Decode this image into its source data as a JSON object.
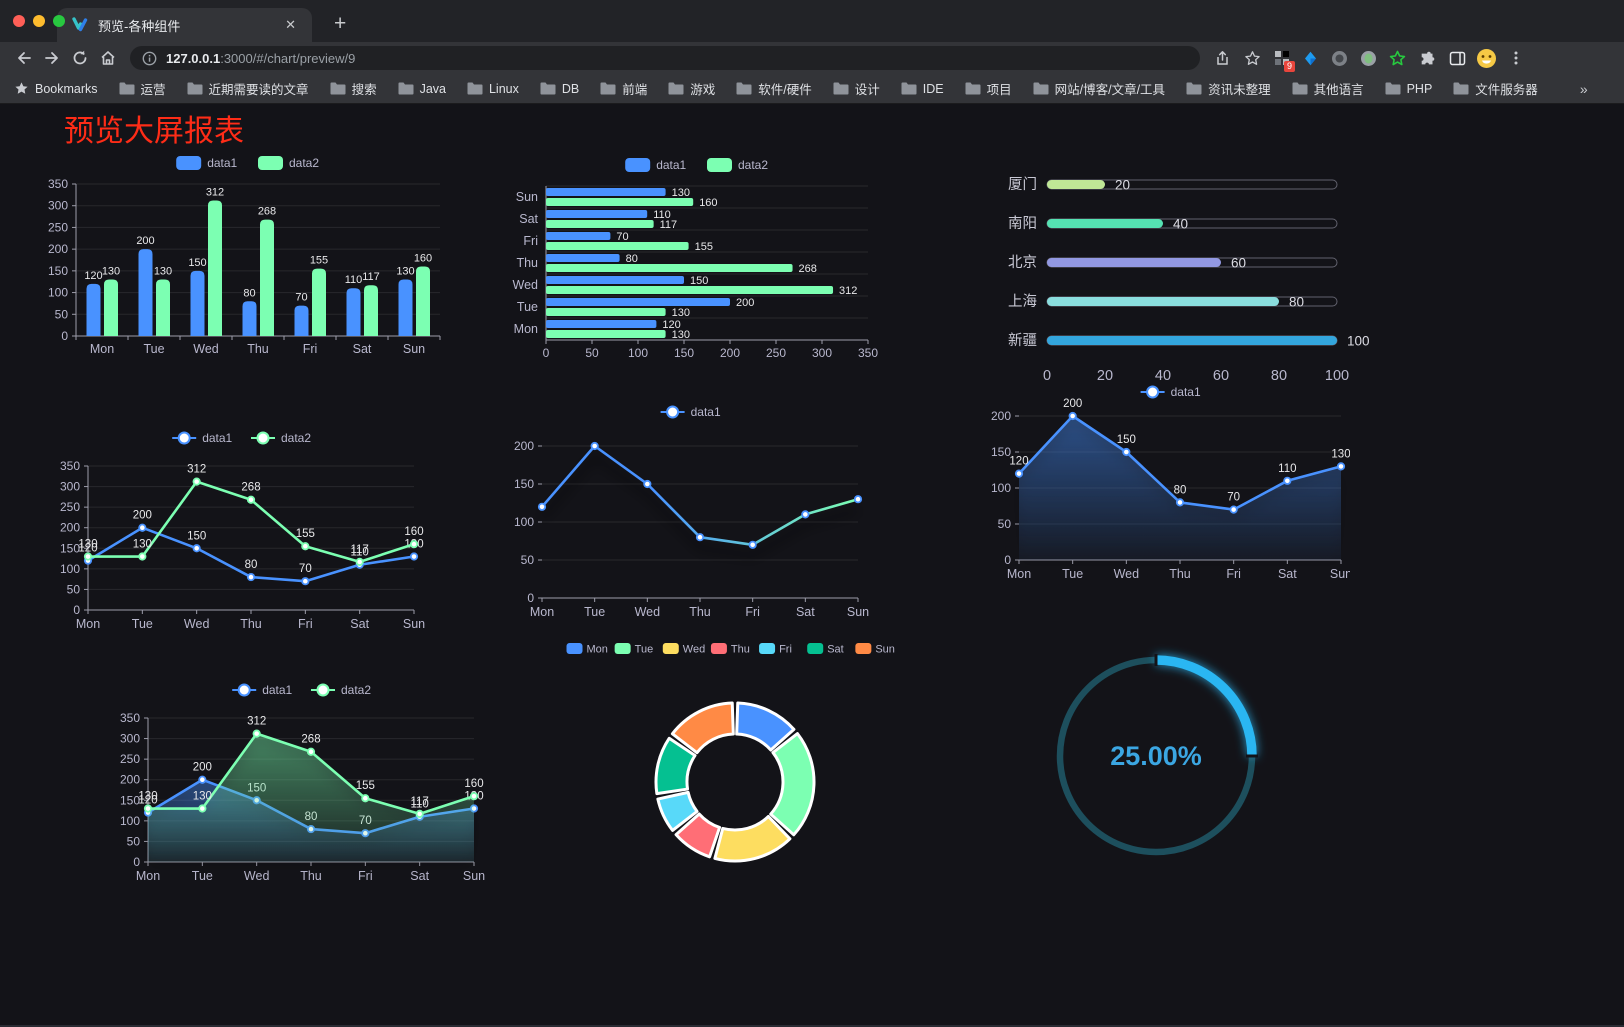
{
  "browser": {
    "tab": {
      "title": "预览-各种组件",
      "close": "✕"
    },
    "new_tab": "+",
    "url_host": "127.0.0.1",
    "url_rest": ":3000/#/chart/preview/9",
    "bookmarks_label": "Bookmarks",
    "bookmarks": [
      "运营",
      "近期需要读的文章",
      "搜索",
      "Java",
      "Linux",
      "DB",
      "前端",
      "游戏",
      "软件/硬件",
      "设计",
      "IDE",
      "项目",
      "网站/博客/文章/工具",
      "资讯未整理",
      "其他语言",
      "PHP",
      "文件服务器"
    ],
    "bookmarks_overflow": "»",
    "other_bookmarks": "其他书签",
    "extension_badge": "9"
  },
  "page": {
    "title": "预览大屏报表",
    "title_color": "#fe2c17"
  },
  "palette": {
    "blue": "#4992ff",
    "green": "#7cffb2",
    "yellow": "#fddd60",
    "red": "#ff6e76",
    "cyan": "#58d9f9",
    "teal": "#05c091",
    "orange": "#ff8a45",
    "axis_text": "#b9b8ce",
    "value_text": "#e8e8ea"
  },
  "chart_data": [
    {
      "id": "bar-grouped",
      "type": "bar",
      "title": "",
      "categories": [
        "Mon",
        "Tue",
        "Wed",
        "Thu",
        "Fri",
        "Sat",
        "Sun"
      ],
      "series": [
        {
          "name": "data1",
          "color": "#4992ff",
          "values": [
            120,
            200,
            150,
            80,
            70,
            110,
            130
          ]
        },
        {
          "name": "data2",
          "color": "#7cffb2",
          "values": [
            130,
            130,
            312,
            268,
            155,
            117,
            160
          ]
        }
      ],
      "ylim": [
        0,
        350
      ],
      "ytick": 50,
      "legend_position": "top",
      "grid": true,
      "value_labels": true
    },
    {
      "id": "bar-horizontal",
      "type": "bar-horizontal",
      "categories_top_to_bottom": [
        "Sun",
        "Sat",
        "Fri",
        "Thu",
        "Wed",
        "Tue",
        "Mon"
      ],
      "series": [
        {
          "name": "data1",
          "color": "#4992ff",
          "values_for_Mon_to_Sun": [
            120,
            200,
            150,
            80,
            70,
            110,
            130
          ]
        },
        {
          "name": "data2",
          "color": "#7cffb2",
          "values_for_Mon_to_Sun": [
            130,
            130,
            312,
            268,
            155,
            117,
            160
          ]
        }
      ],
      "xlim": [
        0,
        350
      ],
      "xtick": 50,
      "legend_position": "top",
      "grid": true,
      "value_labels": true
    },
    {
      "id": "progress-bars",
      "type": "bar-horizontal",
      "categories": [
        "厦门",
        "南阳",
        "北京",
        "上海",
        "新疆"
      ],
      "values": [
        20,
        40,
        60,
        80,
        100
      ],
      "colors": [
        "#c0e796",
        "#55e2b2",
        "#9298e2",
        "#8adede",
        "#33a6dd"
      ],
      "xlim": [
        0,
        100
      ],
      "xticks": [
        0,
        20,
        40,
        60,
        80,
        100
      ],
      "value_labels": true
    },
    {
      "id": "line-two-series",
      "type": "line",
      "categories": [
        "Mon",
        "Tue",
        "Wed",
        "Thu",
        "Fri",
        "Sat",
        "Sun"
      ],
      "series": [
        {
          "name": "data1",
          "color": "#4992ff",
          "values": [
            120,
            200,
            150,
            80,
            70,
            110,
            130
          ]
        },
        {
          "name": "data2",
          "color": "#7cffb2",
          "values": [
            130,
            130,
            312,
            268,
            155,
            117,
            160
          ]
        }
      ],
      "ylim": [
        0,
        350
      ],
      "ytick": 50,
      "legend_position": "top",
      "grid": true,
      "value_labels": true
    },
    {
      "id": "line-gradient",
      "type": "line",
      "categories": [
        "Mon",
        "Tue",
        "Wed",
        "Thu",
        "Fri",
        "Sat",
        "Sun"
      ],
      "series": [
        {
          "name": "data1",
          "gradient": [
            "#4992ff",
            "#7cffb2"
          ],
          "values": [
            120,
            200,
            150,
            80,
            70,
            110,
            130
          ]
        }
      ],
      "ylim": [
        0,
        200
      ],
      "ytick": 50,
      "legend_position": "top",
      "grid": true,
      "value_labels": false
    },
    {
      "id": "area-single",
      "type": "area",
      "categories": [
        "Mon",
        "Tue",
        "Wed",
        "Thu",
        "Fri",
        "Sat",
        "Sun"
      ],
      "series": [
        {
          "name": "data1",
          "color": "#4992ff",
          "values": [
            120,
            200,
            150,
            80,
            70,
            110,
            130
          ]
        }
      ],
      "ylim": [
        0,
        200
      ],
      "ytick": 50,
      "legend_position": "top",
      "grid": true,
      "value_labels": true
    },
    {
      "id": "area-two-series",
      "type": "area",
      "categories": [
        "Mon",
        "Tue",
        "Wed",
        "Thu",
        "Fri",
        "Sat",
        "Sun"
      ],
      "series": [
        {
          "name": "data1",
          "color": "#4992ff",
          "values": [
            120,
            200,
            150,
            80,
            70,
            110,
            130
          ]
        },
        {
          "name": "data2",
          "color": "#7cffb2",
          "values": [
            130,
            130,
            312,
            268,
            155,
            117,
            160
          ]
        }
      ],
      "ylim": [
        0,
        350
      ],
      "ytick": 50,
      "legend_position": "top",
      "grid": true,
      "value_labels": true
    },
    {
      "id": "doughnut",
      "type": "pie",
      "categories": [
        "Mon",
        "Tue",
        "Wed",
        "Thu",
        "Fri",
        "Sat",
        "Sun"
      ],
      "values": [
        120,
        200,
        150,
        80,
        70,
        110,
        130
      ],
      "colors": [
        "#4992ff",
        "#7cffb2",
        "#fddd60",
        "#ff6e76",
        "#58d9f9",
        "#05c091",
        "#ff8a45"
      ],
      "inner_radius_ratio": 0.6,
      "legend_position": "top"
    },
    {
      "id": "gauge",
      "type": "gauge",
      "value": 25,
      "label": "25.00%",
      "color": "#2ab6f2",
      "track_color": "#1d4f5d",
      "text_color": "#3ba6e2"
    }
  ]
}
